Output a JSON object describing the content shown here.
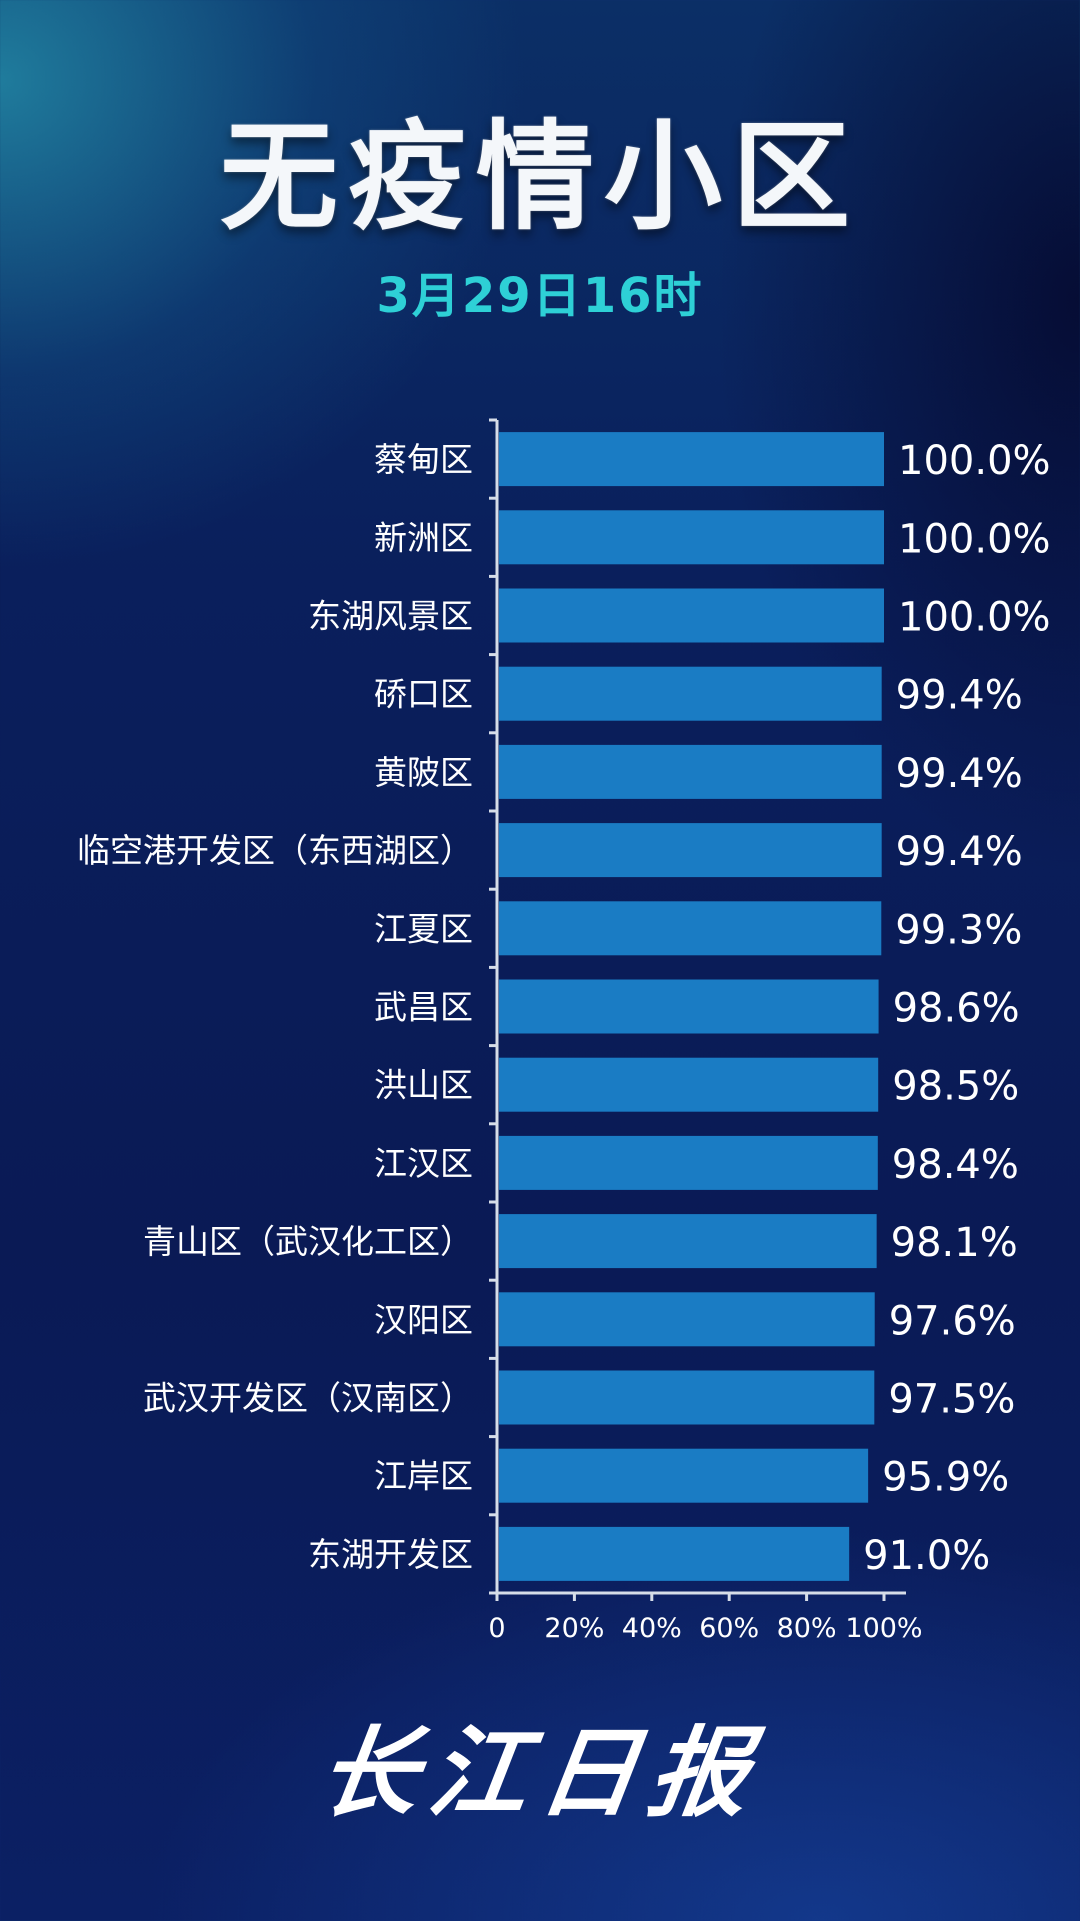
{
  "title": "无疫情小区",
  "subtitle": "3月29日16时",
  "logo_text": "长江日报",
  "colors": {
    "bar": "#1a7cc4",
    "axis": "#d6dde8",
    "text": "#ffffff",
    "subtitle": "#2ed0d6"
  },
  "chart_data": {
    "type": "bar",
    "orientation": "horizontal",
    "categories": [
      "蔡甸区",
      "新洲区",
      "东湖风景区",
      "硚口区",
      "黄陂区",
      "临空港开发区（东西湖区）",
      "江夏区",
      "武昌区",
      "洪山区",
      "江汉区",
      "青山区（武汉化工区）",
      "汉阳区",
      "武汉开发区（汉南区）",
      "江岸区",
      "东湖开发区"
    ],
    "values": [
      100.0,
      100.0,
      100.0,
      99.4,
      99.4,
      99.4,
      99.3,
      98.6,
      98.5,
      98.4,
      98.1,
      97.6,
      97.5,
      95.9,
      91.0
    ],
    "data_labels": [
      "100.0%",
      "100.0%",
      "100.0%",
      "99.4%",
      "99.4%",
      "99.4%",
      "99.3%",
      "98.6%",
      "98.5%",
      "98.4%",
      "98.1%",
      "97.6%",
      "97.5%",
      "95.9%",
      "91.0%"
    ],
    "x_ticks": [
      "0",
      "20%",
      "40%",
      "60%",
      "80%",
      "100%"
    ],
    "x_tick_values": [
      0,
      20,
      40,
      60,
      80,
      100
    ],
    "xlim": [
      0,
      100
    ],
    "title": "无疫情小区",
    "xlabel": "",
    "ylabel": "",
    "grid": false,
    "legend": "none"
  }
}
